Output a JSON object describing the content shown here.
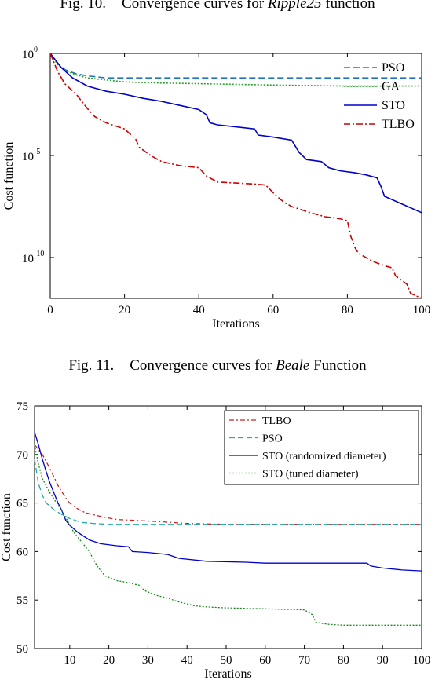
{
  "figures": [
    {
      "caption": {
        "number": "Fig. 10.",
        "before": "Convergence curves for ",
        "italic": "Ripple25",
        "after": " function"
      },
      "chart_data": {
        "type": "line",
        "yscale": "log",
        "xlabel": "Iterations",
        "ylabel": "Cost function",
        "xlim": [
          0,
          100
        ],
        "ylim_exponent": [
          -12,
          0
        ],
        "x_ticks": [
          "0",
          "20",
          "40",
          "60",
          "80",
          "100"
        ],
        "y_ticks": [
          {
            "base": "10",
            "exp": "0",
            "value": 0
          },
          {
            "base": "10",
            "exp": "-5",
            "value": -5
          },
          {
            "base": "10",
            "exp": "-10",
            "value": -10
          }
        ],
        "legend_position": "top-right",
        "series": [
          {
            "name": "PSO",
            "color": "#1f77b4",
            "dash": "8,4",
            "points": [
              [
                0,
                0
              ],
              [
                2,
                -0.5
              ],
              [
                4,
                -0.8
              ],
              [
                7,
                -1.0
              ],
              [
                10,
                -1.1
              ],
              [
                15,
                -1.2
              ],
              [
                20,
                -1.2
              ],
              [
                100,
                -1.2
              ]
            ]
          },
          {
            "name": "GA",
            "color": "#2a9d2a",
            "dash": "2,2",
            "points": [
              [
                0,
                0
              ],
              [
                2,
                -0.55
              ],
              [
                4,
                -0.85
              ],
              [
                7,
                -1.05
              ],
              [
                10,
                -1.2
              ],
              [
                20,
                -1.4
              ],
              [
                30,
                -1.45
              ],
              [
                45,
                -1.5
              ],
              [
                60,
                -1.55
              ],
              [
                80,
                -1.6
              ],
              [
                100,
                -1.6
              ]
            ]
          },
          {
            "name": "STO",
            "color": "#0000cc",
            "dash": "",
            "points": [
              [
                0,
                0
              ],
              [
                3,
                -0.7
              ],
              [
                6,
                -1.2
              ],
              [
                10,
                -1.6
              ],
              [
                15,
                -1.85
              ],
              [
                20,
                -2.0
              ],
              [
                25,
                -2.2
              ],
              [
                30,
                -2.35
              ],
              [
                35,
                -2.55
              ],
              [
                40,
                -2.75
              ],
              [
                42,
                -3.0
              ],
              [
                43,
                -3.4
              ],
              [
                45,
                -3.5
              ],
              [
                50,
                -3.6
              ],
              [
                55,
                -3.7
              ],
              [
                56,
                -4.0
              ],
              [
                60,
                -4.1
              ],
              [
                65,
                -4.25
              ],
              [
                66,
                -4.55
              ],
              [
                67,
                -4.85
              ],
              [
                69,
                -5.2
              ],
              [
                73,
                -5.3
              ],
              [
                75,
                -5.6
              ],
              [
                78,
                -5.75
              ],
              [
                82,
                -5.85
              ],
              [
                85,
                -5.95
              ],
              [
                88,
                -6.1
              ],
              [
                89,
                -6.5
              ],
              [
                90,
                -7.0
              ],
              [
                95,
                -7.4
              ],
              [
                100,
                -7.8
              ]
            ]
          },
          {
            "name": "TLBO",
            "color": "#cc0000",
            "dash": "8,3,2,3",
            "points": [
              [
                0,
                0
              ],
              [
                2,
                -0.9
              ],
              [
                4,
                -1.5
              ],
              [
                7,
                -2.0
              ],
              [
                10,
                -2.7
              ],
              [
                12,
                -3.1
              ],
              [
                15,
                -3.4
              ],
              [
                20,
                -3.7
              ],
              [
                23,
                -4.2
              ],
              [
                24,
                -4.6
              ],
              [
                27,
                -5.0
              ],
              [
                30,
                -5.3
              ],
              [
                35,
                -5.5
              ],
              [
                40,
                -5.6
              ],
              [
                42,
                -6.0
              ],
              [
                45,
                -6.3
              ],
              [
                55,
                -6.4
              ],
              [
                58,
                -6.45
              ],
              [
                61,
                -7.0
              ],
              [
                63,
                -7.3
              ],
              [
                65,
                -7.5
              ],
              [
                70,
                -7.8
              ],
              [
                74,
                -8.0
              ],
              [
                78,
                -8.1
              ],
              [
                80,
                -8.2
              ],
              [
                81,
                -9.0
              ],
              [
                82,
                -9.5
              ],
              [
                83,
                -9.8
              ],
              [
                85,
                -10.0
              ],
              [
                87,
                -10.2
              ],
              [
                90,
                -10.4
              ],
              [
                92,
                -10.5
              ],
              [
                93,
                -10.9
              ],
              [
                96,
                -11.3
              ],
              [
                97,
                -11.75
              ],
              [
                100,
                -12.0
              ]
            ]
          }
        ]
      }
    },
    {
      "caption": {
        "number": "Fig. 11.",
        "before": "Convergence curves for ",
        "italic": "Beale",
        "after": " Function"
      },
      "chart_data": {
        "type": "line",
        "yscale": "linear",
        "xlabel": "Iterations",
        "ylabel": "Cost function",
        "xlim": [
          1,
          100
        ],
        "ylim": [
          50,
          75
        ],
        "x_ticks": [
          10,
          20,
          30,
          40,
          50,
          60,
          70,
          80,
          90,
          100
        ],
        "y_ticks": [
          50,
          55,
          60,
          65,
          70,
          75
        ],
        "legend_position": "top-right",
        "series": [
          {
            "name": "TLBO",
            "color": "#cc2222",
            "dash": "6,3,2,3",
            "points": [
              [
                1,
                71
              ],
              [
                3,
                70
              ],
              [
                5,
                68.5
              ],
              [
                7,
                66.8
              ],
              [
                9,
                65.5
              ],
              [
                10,
                65.0
              ],
              [
                12,
                64.4
              ],
              [
                14,
                64.0
              ],
              [
                18,
                63.6
              ],
              [
                22,
                63.3
              ],
              [
                27,
                63.2
              ],
              [
                32,
                63.1
              ],
              [
                40,
                62.9
              ],
              [
                50,
                62.8
              ],
              [
                60,
                62.8
              ],
              [
                100,
                62.8
              ]
            ]
          },
          {
            "name": "PSO",
            "color": "#20aaaa",
            "dash": "7,4",
            "points": [
              [
                1,
                69.5
              ],
              [
                2,
                67.0
              ],
              [
                3,
                65.8
              ],
              [
                4,
                65.0
              ],
              [
                6,
                64.3
              ],
              [
                8,
                63.8
              ],
              [
                10,
                63.4
              ],
              [
                13,
                63.0
              ],
              [
                16,
                62.9
              ],
              [
                20,
                62.8
              ],
              [
                100,
                62.8
              ]
            ]
          },
          {
            "name": "STO (randomized diameter)",
            "color": "#0000cc",
            "dash": "",
            "points": [
              [
                1,
                72.3
              ],
              [
                2,
                71.0
              ],
              [
                3,
                69.5
              ],
              [
                4,
                68.2
              ],
              [
                5,
                67.0
              ],
              [
                6,
                66.0
              ],
              [
                7,
                65.0
              ],
              [
                8,
                64.2
              ],
              [
                9,
                63.2
              ],
              [
                10,
                62.7
              ],
              [
                12,
                62.0
              ],
              [
                15,
                61.2
              ],
              [
                18,
                60.8
              ],
              [
                22,
                60.6
              ],
              [
                25,
                60.5
              ],
              [
                26,
                60.0
              ],
              [
                30,
                59.9
              ],
              [
                35,
                59.7
              ],
              [
                38,
                59.3
              ],
              [
                45,
                59.0
              ],
              [
                55,
                58.9
              ],
              [
                60,
                58.8
              ],
              [
                70,
                58.8
              ],
              [
                86,
                58.8
              ],
              [
                87,
                58.5
              ],
              [
                90,
                58.3
              ],
              [
                95,
                58.1
              ],
              [
                100,
                58.0
              ]
            ]
          },
          {
            "name": "STO (tuned diameter)",
            "color": "#1a8a1a",
            "dash": "2,2",
            "points": [
              [
                1,
                71.0
              ],
              [
                2,
                69.0
              ],
              [
                3,
                67.5
              ],
              [
                5,
                66.0
              ],
              [
                7,
                64.8
              ],
              [
                9,
                63.5
              ],
              [
                11,
                62.0
              ],
              [
                13,
                61.0
              ],
              [
                15,
                60.0
              ],
              [
                17,
                58.5
              ],
              [
                19,
                57.5
              ],
              [
                22,
                57.0
              ],
              [
                25,
                56.8
              ],
              [
                28,
                56.5
              ],
              [
                29,
                56.0
              ],
              [
                32,
                55.5
              ],
              [
                35,
                55.2
              ],
              [
                38,
                54.8
              ],
              [
                42,
                54.4
              ],
              [
                45,
                54.3
              ],
              [
                50,
                54.2
              ],
              [
                60,
                54.1
              ],
              [
                70,
                54.0
              ],
              [
                72,
                53.5
              ],
              [
                73,
                52.7
              ],
              [
                76,
                52.5
              ],
              [
                80,
                52.4
              ],
              [
                100,
                52.4
              ]
            ]
          }
        ]
      }
    }
  ]
}
